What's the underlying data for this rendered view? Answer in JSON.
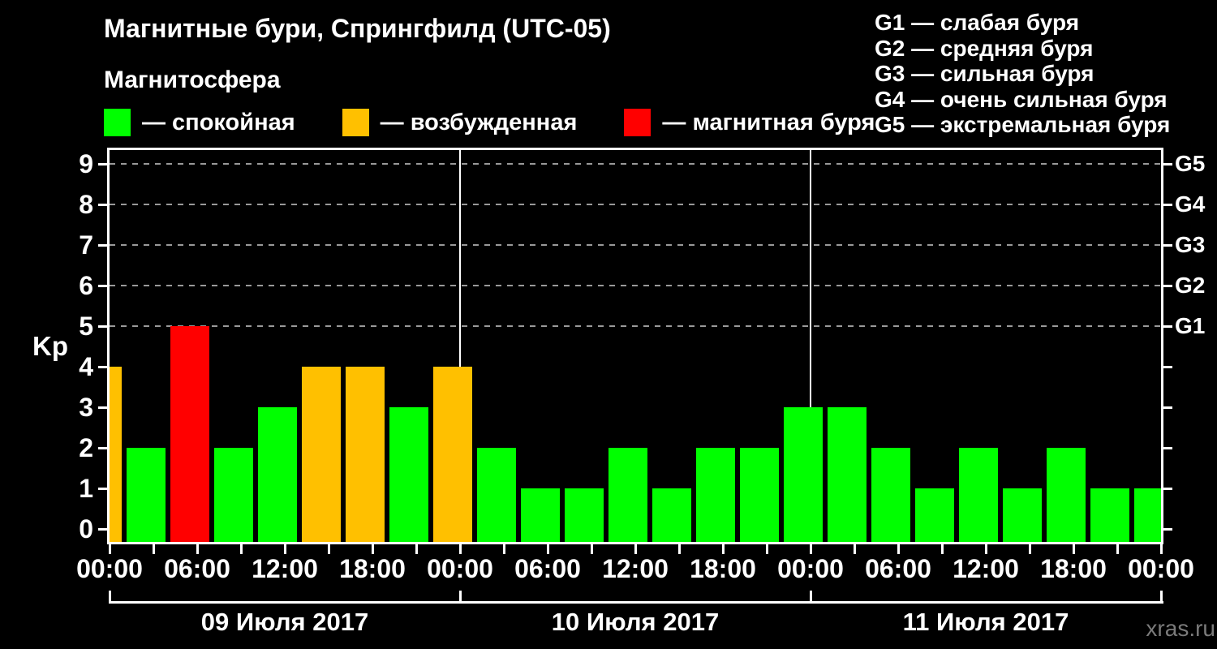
{
  "title": "Магнитные бури, Спрингфилд (UTC-05)",
  "subtitle": "Магнитосфера",
  "legend": {
    "items": [
      {
        "status": "calm",
        "color": "#00ff00",
        "label": "— спокойная"
      },
      {
        "status": "excited",
        "color": "#ffc000",
        "label": "— возбужденная"
      },
      {
        "status": "storm",
        "color": "#ff0000",
        "label": "— магнитная буря"
      }
    ]
  },
  "storm_scale_legend": [
    "G1 — слабая буря",
    "G2 — средняя буря",
    "G3 — сильная буря",
    "G4 — очень сильная буря",
    "G5 — экстремальная буря"
  ],
  "watermark": "xras.ru",
  "chart_data": {
    "type": "bar",
    "ylabel": "Kp",
    "ylim": [
      0,
      9
    ],
    "y_ticks": [
      0,
      1,
      2,
      3,
      4,
      5,
      6,
      7,
      8,
      9
    ],
    "gridlines_at": [
      5,
      6,
      7,
      8,
      9
    ],
    "grid": "dashed horizontal lines at Kp 5-9 only",
    "legend_position": "top",
    "right_axis": [
      {
        "level": 5,
        "label": "G1"
      },
      {
        "level": 6,
        "label": "G2"
      },
      {
        "level": 7,
        "label": "G3"
      },
      {
        "level": 8,
        "label": "G4"
      },
      {
        "level": 9,
        "label": "G5"
      }
    ],
    "x_range_hours": [
      0,
      72
    ],
    "x_minor_tick_step_hours": 3,
    "x_labels": [
      {
        "hour": 0,
        "label": "00:00"
      },
      {
        "hour": 6,
        "label": "06:00"
      },
      {
        "hour": 12,
        "label": "12:00"
      },
      {
        "hour": 18,
        "label": "18:00"
      },
      {
        "hour": 24,
        "label": "00:00"
      },
      {
        "hour": 30,
        "label": "06:00"
      },
      {
        "hour": 36,
        "label": "12:00"
      },
      {
        "hour": 42,
        "label": "18:00"
      },
      {
        "hour": 48,
        "label": "00:00"
      },
      {
        "hour": 54,
        "label": "06:00"
      },
      {
        "hour": 60,
        "label": "12:00"
      },
      {
        "hour": 66,
        "label": "18:00"
      },
      {
        "hour": 72,
        "label": "00:00"
      }
    ],
    "day_boundaries_hours": [
      0,
      24,
      48,
      72
    ],
    "days": [
      {
        "label": "09 Июля 2017",
        "center_hour": 12
      },
      {
        "label": "10 Июля 2017",
        "center_hour": 36
      },
      {
        "label": "11 Июля 2017",
        "center_hour": 60
      }
    ],
    "bars": [
      {
        "hour": 0,
        "kp": 4,
        "status": "excited"
      },
      {
        "hour": 3,
        "kp": 2,
        "status": "calm"
      },
      {
        "hour": 6,
        "kp": 5,
        "status": "storm"
      },
      {
        "hour": 9,
        "kp": 2,
        "status": "calm"
      },
      {
        "hour": 12,
        "kp": 3,
        "status": "calm"
      },
      {
        "hour": 15,
        "kp": 4,
        "status": "excited"
      },
      {
        "hour": 18,
        "kp": 4,
        "status": "excited"
      },
      {
        "hour": 21,
        "kp": 3,
        "status": "calm"
      },
      {
        "hour": 24,
        "kp": 4,
        "status": "excited"
      },
      {
        "hour": 27,
        "kp": 2,
        "status": "calm"
      },
      {
        "hour": 30,
        "kp": 1,
        "status": "calm"
      },
      {
        "hour": 33,
        "kp": 1,
        "status": "calm"
      },
      {
        "hour": 36,
        "kp": 2,
        "status": "calm"
      },
      {
        "hour": 39,
        "kp": 1,
        "status": "calm"
      },
      {
        "hour": 42,
        "kp": 2,
        "status": "calm"
      },
      {
        "hour": 45,
        "kp": 2,
        "status": "calm"
      },
      {
        "hour": 48,
        "kp": 3,
        "status": "calm"
      },
      {
        "hour": 51,
        "kp": 3,
        "status": "calm"
      },
      {
        "hour": 54,
        "kp": 2,
        "status": "calm"
      },
      {
        "hour": 57,
        "kp": 1,
        "status": "calm"
      },
      {
        "hour": 60,
        "kp": 2,
        "status": "calm"
      },
      {
        "hour": 63,
        "kp": 1,
        "status": "calm"
      },
      {
        "hour": 66,
        "kp": 2,
        "status": "calm"
      },
      {
        "hour": 69,
        "kp": 1,
        "status": "calm"
      },
      {
        "hour": 72,
        "kp": 1,
        "status": "calm"
      }
    ],
    "status_colors": {
      "calm": "#00ff00",
      "excited": "#ffc000",
      "storm": "#ff0000"
    }
  }
}
